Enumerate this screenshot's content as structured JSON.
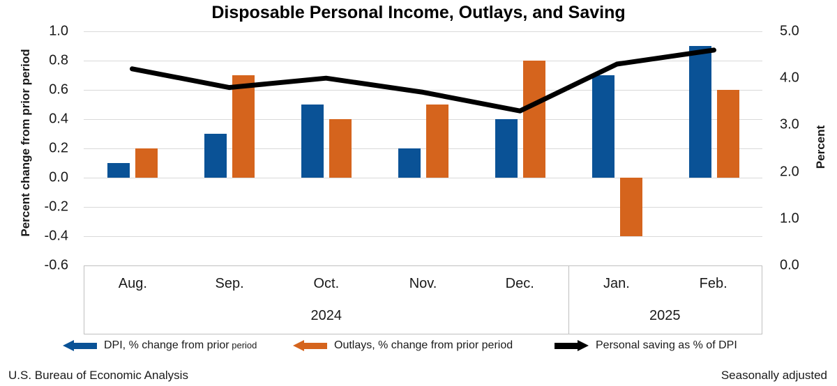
{
  "title": "Disposable Personal Income, Outlays, and Saving",
  "footer": {
    "left": "U.S. Bureau of Economic Analysis",
    "right": "Seasonally adjusted"
  },
  "axes": {
    "left": {
      "title": "Percent change from prior period",
      "ticks": [
        "1.0",
        "0.8",
        "0.6",
        "0.4",
        "0.2",
        "0.0",
        "-0.2",
        "-0.4",
        "-0.6"
      ]
    },
    "right": {
      "title": "Percent",
      "ticks": [
        "5.0",
        "4.0",
        "3.0",
        "2.0",
        "1.0",
        "0.0"
      ]
    }
  },
  "x_axis": {
    "months": [
      "Aug.",
      "Sep.",
      "Oct.",
      "Nov.",
      "Dec.",
      "Jan.",
      "Feb."
    ],
    "years": [
      {
        "label": "2024",
        "span": 5
      },
      {
        "label": "2025",
        "span": 2
      }
    ]
  },
  "colors": {
    "dpi": "#0a5296",
    "outlays": "#d5641d",
    "saving": "#000000",
    "gridline": "#d9d9d9",
    "axis_box_border": "#bfbfbf",
    "text": "#1a1a1a"
  },
  "legend": {
    "items": [
      {
        "series": "dpi",
        "arrow": "left",
        "label": "DPI, % change from prior",
        "label_small": "period"
      },
      {
        "series": "outlays",
        "arrow": "left",
        "label": "Outlays, % change from prior period",
        "label_small": ""
      },
      {
        "series": "saving",
        "arrow": "right",
        "label": "Personal saving as % of DPI",
        "label_small": ""
      }
    ]
  },
  "chart_data": {
    "type": "bar",
    "subtype": "grouped-bars-with-line",
    "title": "Disposable Personal Income, Outlays, and Saving",
    "categories": [
      "Aug.",
      "Sep.",
      "Oct.",
      "Nov.",
      "Dec.",
      "Jan.",
      "Feb."
    ],
    "category_years": [
      "2024",
      "2024",
      "2024",
      "2024",
      "2024",
      "2025",
      "2025"
    ],
    "series": [
      {
        "name": "DPI, % change from prior period",
        "type": "bar",
        "axis": "left",
        "color": "#0a5296",
        "values": [
          0.1,
          0.3,
          0.5,
          0.2,
          0.4,
          0.7,
          0.9
        ]
      },
      {
        "name": "Outlays, % change from prior period",
        "type": "bar",
        "axis": "left",
        "color": "#d5641d",
        "values": [
          0.2,
          0.7,
          0.4,
          0.5,
          0.8,
          -0.4,
          0.6
        ]
      },
      {
        "name": "Personal saving as % of DPI",
        "type": "line",
        "axis": "right",
        "color": "#000000",
        "values": [
          4.2,
          3.8,
          4.0,
          3.7,
          3.3,
          4.3,
          4.6
        ]
      }
    ],
    "xlabel": "",
    "ylabel_left": "Percent change from prior period",
    "ylabel_right": "Percent",
    "ylim_left": [
      -0.6,
      1.0
    ],
    "ylim_right": [
      0.0,
      5.0
    ],
    "grid": true,
    "legend_position": "bottom",
    "notes": [
      "Seasonally adjusted"
    ],
    "source": "U.S. Bureau of Economic Analysis"
  }
}
